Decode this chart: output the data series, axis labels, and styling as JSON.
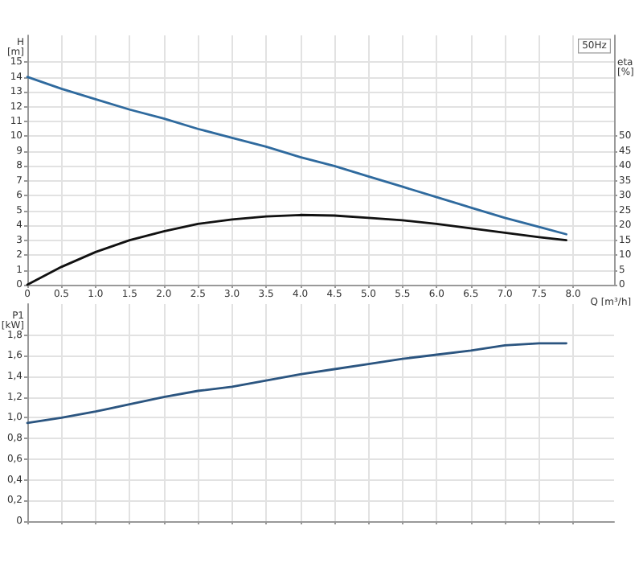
{
  "chart_data": [
    {
      "type": "line",
      "xlabel": "Q [m³/h]",
      "ylabel": "H\n[m]",
      "y2label": "eta\n[%]",
      "annotations": [
        "50Hz"
      ],
      "grid": true,
      "marker": "none",
      "line_style": "solid",
      "xlim": [
        0,
        8.6
      ],
      "xticks": [
        0,
        {
          "value": 0.5,
          "label": "0.5"
        },
        {
          "value": 1,
          "label": "1.0"
        },
        {
          "value": 1.5,
          "label": "1.5"
        },
        {
          "value": 2,
          "label": "2.0"
        },
        {
          "value": 2.5,
          "label": "2.5"
        },
        {
          "value": 3,
          "label": "3.0"
        },
        {
          "value": 3.5,
          "label": "3.5"
        },
        {
          "value": 4,
          "label": "4.0"
        },
        {
          "value": 4.5,
          "label": "4.5"
        },
        {
          "value": 5,
          "label": "5.0"
        },
        {
          "value": 5.5,
          "label": "5.5"
        },
        {
          "value": 6,
          "label": "6.0"
        },
        {
          "value": 6.5,
          "label": "6.5"
        },
        {
          "value": 7,
          "label": "7.0"
        },
        {
          "value": 7.5,
          "label": "7.5"
        },
        {
          "value": 8,
          "label": "8.0"
        }
      ],
      "ylim": [
        0,
        16.8
      ],
      "yticks": [
        0,
        1,
        2,
        3,
        4,
        5,
        6,
        7,
        8,
        9,
        10,
        11,
        12,
        13,
        14,
        15
      ],
      "y2lim": [
        0,
        84
      ],
      "y2ticks": [
        0,
        5,
        10,
        15,
        20,
        25,
        30,
        35,
        40,
        45,
        50
      ],
      "x": [
        0,
        0.5,
        1,
        1.5,
        2,
        2.5,
        3,
        3.5,
        4,
        4.5,
        5,
        5.5,
        6,
        6.5,
        7,
        7.5,
        7.9
      ],
      "series": [
        {
          "color": "#2f6a9e",
          "values": [
            14,
            13.2,
            12.5,
            11.8,
            11.2,
            10.5,
            9.9,
            9.3,
            8.6,
            8.0,
            7.3,
            6.6,
            5.9,
            5.2,
            4.5,
            3.9,
            3.4
          ]
        },
        {
          "color": "#111111",
          "axis": "y2",
          "values": [
            0,
            6,
            11,
            15,
            18,
            20.5,
            22,
            23,
            23.5,
            23.3,
            22.5,
            21.7,
            20.5,
            19,
            17.5,
            16,
            15
          ]
        }
      ]
    },
    {
      "type": "line",
      "ylabel": "P1\n[kW]",
      "grid": true,
      "marker": "none",
      "line_style": "solid",
      "tick_labels": "y",
      "xlim": [
        0,
        8.6
      ],
      "xticks": [
        0,
        0.5,
        1,
        1.5,
        2,
        2.5,
        3,
        3.5,
        4,
        4.5,
        5,
        5.5,
        6,
        6.5,
        7,
        7.5,
        8
      ],
      "ylim": [
        0,
        2.1
      ],
      "yticks": [
        0,
        {
          "value": 0.2,
          "label": "0,2"
        },
        {
          "value": 0.4,
          "label": "0,4"
        },
        {
          "value": 0.6,
          "label": "0,6"
        },
        {
          "value": 0.8,
          "label": "0,8"
        },
        {
          "value": 1,
          "label": "1,0"
        },
        {
          "value": 1.2,
          "label": "1,2"
        },
        {
          "value": 1.4,
          "label": "1,4"
        },
        {
          "value": 1.6,
          "label": "1,6"
        },
        {
          "value": 1.8,
          "label": "1,8"
        }
      ],
      "x": [
        0,
        0.5,
        1,
        1.5,
        2,
        2.5,
        3,
        3.5,
        4,
        4.5,
        5,
        5.5,
        6,
        6.5,
        7,
        7.5,
        7.9
      ],
      "series": [
        {
          "color": "#2b5580",
          "values": [
            0.95,
            1.0,
            1.06,
            1.13,
            1.2,
            1.26,
            1.3,
            1.36,
            1.42,
            1.47,
            1.52,
            1.57,
            1.61,
            1.65,
            1.7,
            1.72,
            1.72
          ]
        }
      ]
    }
  ]
}
